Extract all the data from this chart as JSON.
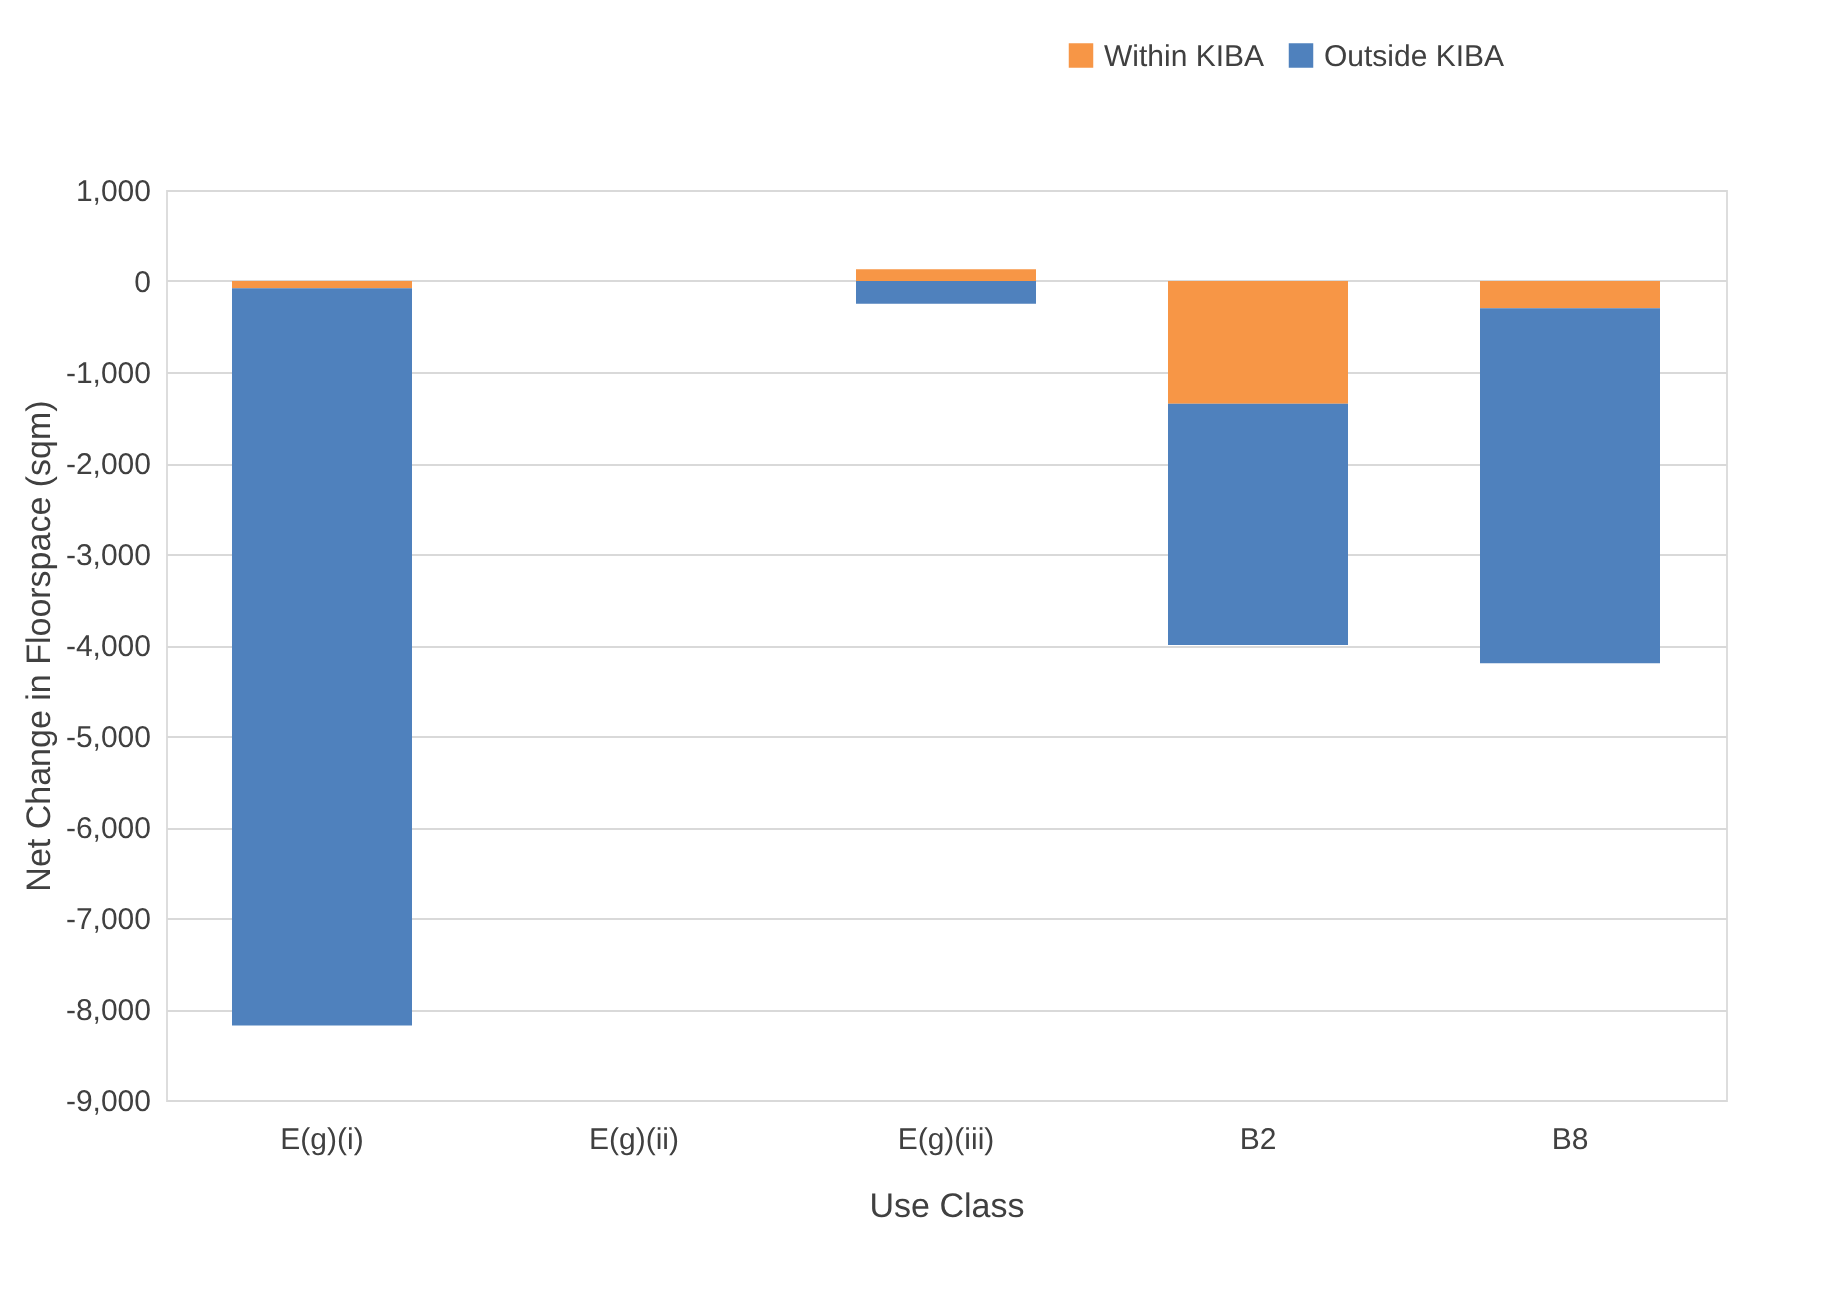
{
  "chart_data": {
    "type": "bar",
    "stacked": true,
    "xlabel": "Use Class",
    "ylabel": "Net Change in Floorspace (sqm)",
    "categories": [
      "E(g)(i)",
      "E(g)(ii)",
      "E(g)(iii)",
      "B2",
      "B8"
    ],
    "series": [
      {
        "name": "Within KIBA",
        "color": "#f79646",
        "values": [
          -80,
          0,
          130,
          -1350,
          -300
        ]
      },
      {
        "name": "Outside KIBA",
        "color": "#4f81bd",
        "values": [
          -8100,
          0,
          -250,
          -2650,
          -3900
        ]
      }
    ],
    "ylim": [
      -9000,
      1000
    ],
    "yticks": [
      {
        "value": -9000,
        "label": "-9,000"
      },
      {
        "value": -8000,
        "label": "-8,000"
      },
      {
        "value": -7000,
        "label": "-7,000"
      },
      {
        "value": -6000,
        "label": "-6,000"
      },
      {
        "value": -5000,
        "label": "-5,000"
      },
      {
        "value": -4000,
        "label": "-4,000"
      },
      {
        "value": -3000,
        "label": "-3,000"
      },
      {
        "value": -2000,
        "label": "-2,000"
      },
      {
        "value": -1000,
        "label": "-1,000"
      },
      0,
      {
        "value": 1000,
        "label": "1,000"
      }
    ],
    "grid": "y",
    "legend": "top right"
  }
}
